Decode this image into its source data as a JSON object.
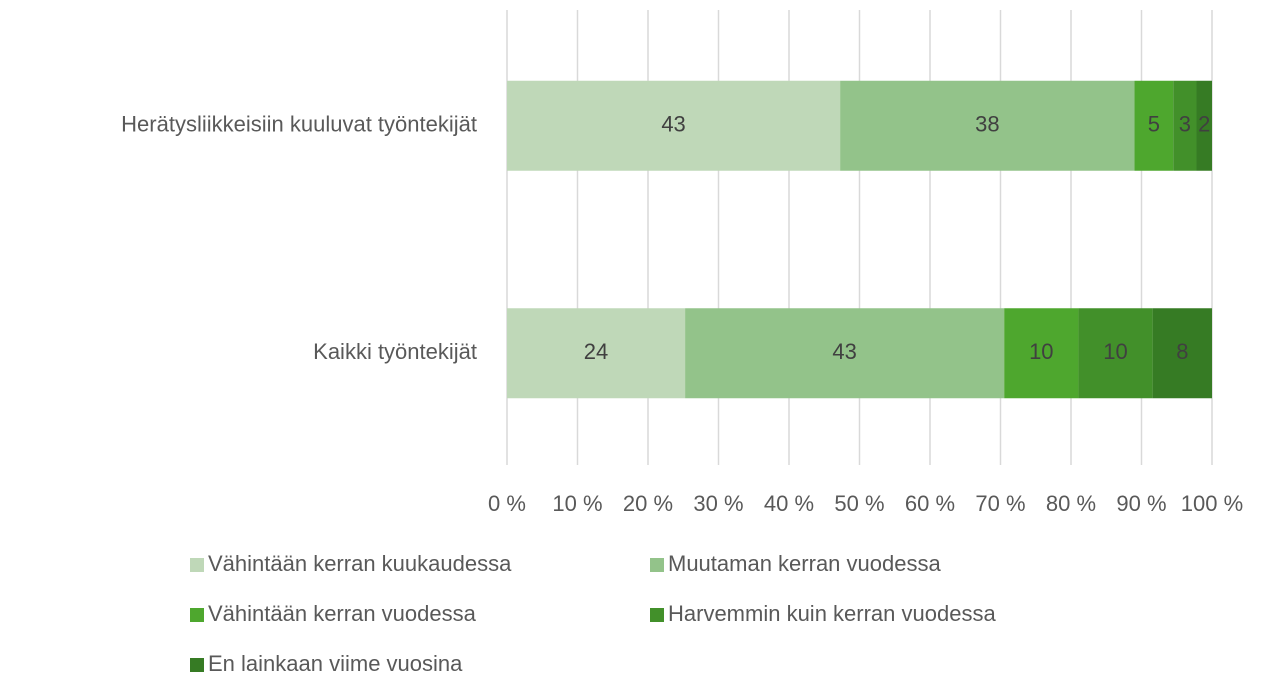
{
  "chart_data": {
    "type": "bar",
    "orientation": "horizontal",
    "stacked": "percent",
    "categories": [
      "Herätysliikkeisiin kuuluvat työntekijät",
      "Kaikki työntekijät"
    ],
    "series": [
      {
        "name": "Vähintään kerran kuukaudessa",
        "color": "#bfd8b8",
        "values": [
          43,
          24
        ]
      },
      {
        "name": "Muutaman kerran vuodessa",
        "color": "#93c38a",
        "values": [
          38,
          43
        ]
      },
      {
        "name": "Vähintään kerran vuodessa",
        "color": "#4ea72e",
        "values": [
          5,
          10
        ]
      },
      {
        "name": "Harvemmin kuin kerran vuodessa",
        "color": "#42902a",
        "values": [
          3,
          10
        ]
      },
      {
        "name": "En lainkaan viime vuosina",
        "color": "#367b24",
        "values": [
          2,
          8
        ]
      }
    ],
    "xlim": [
      0,
      100
    ],
    "xticks": [
      {
        "value": 0,
        "label": "0 %"
      },
      {
        "value": 10,
        "label": "10 %"
      },
      {
        "value": 20,
        "label": "20 %"
      },
      {
        "value": 30,
        "label": "30 %"
      },
      {
        "value": 40,
        "label": "40 %"
      },
      {
        "value": 50,
        "label": "50 %"
      },
      {
        "value": 60,
        "label": "60 %"
      },
      {
        "value": 70,
        "label": "70 %"
      },
      {
        "value": 80,
        "label": "80 %"
      },
      {
        "value": 90,
        "label": "90 %"
      },
      {
        "value": 100,
        "label": "100 %"
      }
    ],
    "grid": true,
    "legend": "bottom"
  }
}
